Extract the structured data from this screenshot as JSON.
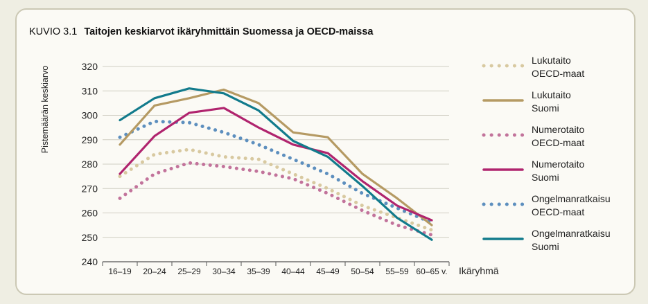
{
  "figure": {
    "number": "KUVIO 3.1",
    "title": "Taitojen keskiarvot ikäryhmittäin Suomessa ja OECD-maissa"
  },
  "chart_data": {
    "type": "line",
    "title": "Taitojen keskiarvot ikäryhmittäin Suomessa ja OECD-maissa",
    "xlabel": "Ikäryhmä",
    "ylabel": "Pistemäärän keskiarvo",
    "categories": [
      "16–19",
      "20–24",
      "25–29",
      "30–34",
      "35–39",
      "40–44",
      "45–49",
      "50–54",
      "55–59",
      "60–65 v."
    ],
    "ylim": [
      240,
      320
    ],
    "yticks": [
      240,
      250,
      260,
      270,
      280,
      290,
      300,
      310,
      320
    ],
    "grid": "horizontal",
    "legend_position": "right",
    "series": [
      {
        "name": "Lukutaito OECD-maat",
        "legend_lines": [
          "Lukutaito",
          "OECD-maat"
        ],
        "color": "#d8c9a0",
        "style": "dotted",
        "values": [
          275,
          284,
          286,
          283,
          282,
          276,
          270,
          263,
          258,
          253
        ]
      },
      {
        "name": "Lukutaito Suomi",
        "legend_lines": [
          "Lukutaito",
          "Suomi"
        ],
        "color": "#b59a63",
        "style": "solid",
        "values": [
          288,
          304,
          307,
          310.5,
          305,
          293,
          291,
          276,
          266,
          255
        ]
      },
      {
        "name": "Numerotaito OECD-maat",
        "legend_lines": [
          "Numerotaito",
          "OECD-maat"
        ],
        "color": "#c2739b",
        "style": "dotted",
        "values": [
          266,
          276,
          280.5,
          279,
          277,
          274,
          268,
          261,
          255,
          251
        ]
      },
      {
        "name": "Numerotaito Suomi",
        "legend_lines": [
          "Numerotaito",
          "Suomi"
        ],
        "color": "#b0246e",
        "style": "solid",
        "values": [
          276,
          291.5,
          301,
          303,
          295,
          288,
          284.5,
          273,
          263,
          257
        ]
      },
      {
        "name": "Ongelmanratkaisu OECD-maat",
        "legend_lines": [
          "Ongelmanratkaisu",
          "OECD-maat"
        ],
        "color": "#5d8fbe",
        "style": "dotted",
        "values": [
          291,
          297.5,
          297,
          293,
          288,
          282,
          276,
          268,
          262,
          256
        ]
      },
      {
        "name": "Ongelmanratkaisu Suomi",
        "legend_lines": [
          "Ongelmanratkaisu",
          "Suomi"
        ],
        "color": "#127b8c",
        "style": "solid",
        "values": [
          298,
          307,
          311,
          309,
          302,
          289.5,
          283,
          271,
          258,
          249
        ]
      }
    ]
  }
}
